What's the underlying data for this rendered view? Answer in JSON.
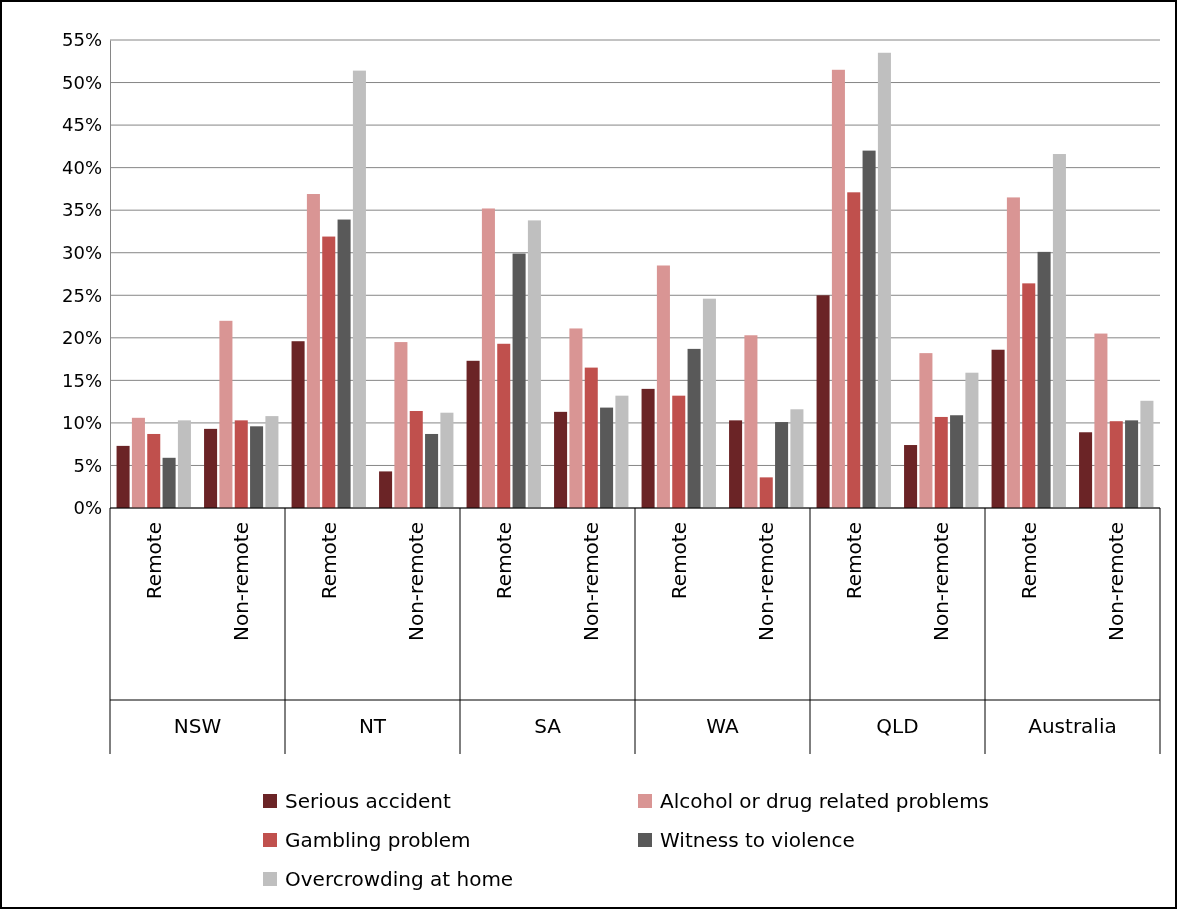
{
  "chart_data": {
    "type": "bar",
    "categories": [
      "Remote",
      "Non-remote",
      "Remote",
      "Non-remote",
      "Remote",
      "Non-remote",
      "Remote",
      "Non-remote",
      "Remote",
      "Non-remote",
      "Remote",
      "Non-remote"
    ],
    "annotations": [
      "NSW",
      "NT",
      "SA",
      "WA",
      "QLD",
      "Australia"
    ],
    "series": [
      {
        "name": "Serious accident",
        "color": "#6b2426",
        "values": [
          7.3,
          9.3,
          19.6,
          4.3,
          17.3,
          11.3,
          14.0,
          10.3,
          25.0,
          7.4,
          18.6,
          8.9
        ]
      },
      {
        "name": "Alcohol or drug related problems",
        "color": "#d99594",
        "values": [
          10.6,
          22.0,
          36.9,
          19.5,
          35.2,
          21.1,
          28.5,
          20.3,
          51.5,
          18.2,
          36.5,
          20.5
        ]
      },
      {
        "name": "Gambling problem",
        "color": "#c0504d",
        "values": [
          8.7,
          10.3,
          31.9,
          11.4,
          19.3,
          16.5,
          13.2,
          3.6,
          37.1,
          10.7,
          26.4,
          10.2
        ]
      },
      {
        "name": "Witness to violence",
        "color": "#595959",
        "values": [
          5.9,
          9.6,
          33.9,
          8.7,
          29.9,
          11.8,
          18.7,
          10.1,
          42.0,
          10.9,
          30.1,
          10.3
        ]
      },
      {
        "name": "Overcrowding at home",
        "color": "#bfbfbf",
        "values": [
          10.3,
          10.8,
          51.4,
          11.2,
          33.8,
          13.2,
          24.6,
          11.6,
          53.5,
          15.9,
          41.6,
          12.6
        ]
      }
    ],
    "ylim": [
      0,
      55
    ],
    "yticks": [
      {
        "value": 0,
        "label": "0%"
      },
      {
        "value": 5,
        "label": "5%"
      },
      {
        "value": 10,
        "label": "10%"
      },
      {
        "value": 15,
        "label": "15%"
      },
      {
        "value": 20,
        "label": "20%"
      },
      {
        "value": 25,
        "label": "25%"
      },
      {
        "value": 30,
        "label": "30%"
      },
      {
        "value": 35,
        "label": "35%"
      },
      {
        "value": 40,
        "label": "40%"
      },
      {
        "value": 45,
        "label": "45%"
      },
      {
        "value": 50,
        "label": "50%"
      },
      {
        "value": 55,
        "label": "55%"
      }
    ],
    "grid": "y",
    "legend": "bottom"
  }
}
